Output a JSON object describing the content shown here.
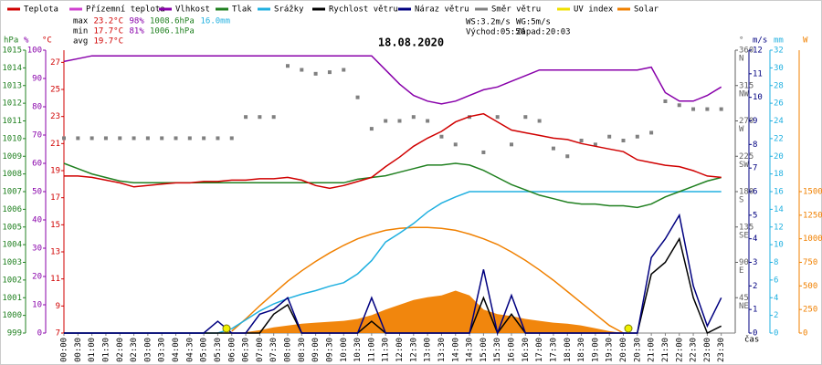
{
  "chart_data": {
    "type": "line",
    "title": "18.08.2020",
    "legend": [
      {
        "name": "Teplota",
        "color": "#d00000"
      },
      {
        "name": "Přízemní teplota",
        "color": "#d040d0"
      },
      {
        "name": "Vlhkost",
        "color": "#8800aa"
      },
      {
        "name": "Tlak",
        "color": "#208020"
      },
      {
        "name": "Srážky",
        "color": "#20b0e0"
      },
      {
        "name": "Rychlost větru",
        "color": "#000000"
      },
      {
        "name": "Náraz větru",
        "color": "#000080"
      },
      {
        "name": "Směr větru",
        "color": "#808080"
      },
      {
        "name": "UV index",
        "color": "#f0e000"
      },
      {
        "name": "Solar",
        "color": "#f08000"
      }
    ],
    "stats": [
      [
        {
          "text": "max",
          "color": "#000000"
        },
        {
          "text": "23.2°C",
          "color": "#d00000"
        },
        {
          "text": "98%",
          "color": "#8800aa"
        },
        {
          "text": "1008.6hPa",
          "color": "#208020"
        },
        {
          "text": "16.0mm",
          "color": "#20b0e0"
        }
      ],
      [
        {
          "text": "min",
          "color": "#000000"
        },
        {
          "text": "17.7°C",
          "color": "#d00000"
        },
        {
          "text": "81%",
          "color": "#8800aa"
        },
        {
          "text": "1006.1hPa",
          "color": "#208020"
        }
      ],
      [
        {
          "text": "avg",
          "color": "#000000"
        },
        {
          "text": "19.7°C",
          "color": "#d00000"
        }
      ]
    ],
    "info": [
      "WS:3.2m/s",
      "WG:5m/s",
      "Východ:05:50",
      "Západ:20:03"
    ],
    "x_label": "čas",
    "categories": [
      "00:00",
      "00:30",
      "01:00",
      "01:30",
      "02:00",
      "02:30",
      "03:00",
      "03:30",
      "04:00",
      "04:30",
      "05:00",
      "05:30",
      "06:00",
      "06:30",
      "07:00",
      "07:30",
      "08:00",
      "08:30",
      "09:00",
      "09:30",
      "10:00",
      "10:30",
      "11:00",
      "11:30",
      "12:00",
      "12:30",
      "13:00",
      "13:30",
      "14:00",
      "14:30",
      "15:00",
      "15:30",
      "16:00",
      "16:30",
      "17:00",
      "17:30",
      "18:00",
      "18:30",
      "19:00",
      "19:30",
      "20:00",
      "20:30",
      "21:00",
      "21:30",
      "22:00",
      "22:30",
      "23:00",
      "23:30"
    ],
    "axes": {
      "press": {
        "label": "hPa",
        "color": "#208020",
        "ylim": [
          999,
          1015
        ],
        "yticks": [
          999,
          1000,
          1001,
          1002,
          1003,
          1004,
          1005,
          1006,
          1007,
          1008,
          1009,
          1010,
          1011,
          1012,
          1013,
          1014,
          1015
        ]
      },
      "hum": {
        "label": "%",
        "color": "#8800aa",
        "ylim": [
          0,
          100
        ],
        "yticks": [
          0,
          10,
          20,
          30,
          40,
          50,
          60,
          70,
          80,
          90,
          100
        ]
      },
      "temp": {
        "label": "°C",
        "color": "#d00000",
        "ylim": [
          7,
          27.9
        ],
        "yticks": [
          7,
          9,
          11,
          13,
          15,
          17,
          19,
          21,
          23,
          25,
          27
        ]
      },
      "dir": {
        "label": "°",
        "color": "#606060",
        "ylim": [
          0,
          360
        ],
        "yticks": [
          {
            "value": 45,
            "label": "45",
            "sub": "NE"
          },
          {
            "value": 90,
            "label": "90",
            "sub": "E"
          },
          {
            "value": 135,
            "label": "135",
            "sub": "SE"
          },
          {
            "value": 180,
            "label": "180",
            "sub": "S"
          },
          {
            "value": 225,
            "label": "225",
            "sub": "SW"
          },
          {
            "value": 270,
            "label": "270",
            "sub": "W"
          },
          {
            "value": 315,
            "label": "315",
            "sub": "NW"
          },
          {
            "value": 360,
            "label": "360",
            "sub": "N"
          }
        ]
      },
      "ms": {
        "label": "m/s",
        "color": "#000080",
        "ylim": [
          0,
          12
        ],
        "yticks": [
          0,
          1,
          2,
          3,
          4,
          5,
          6,
          7,
          8,
          9,
          10,
          11,
          12
        ]
      },
      "mm": {
        "label": "mm",
        "color": "#20b0e0",
        "ylim": [
          0,
          32
        ],
        "yticks": [
          0,
          2,
          4,
          6,
          8,
          10,
          12,
          14,
          16,
          18,
          20,
          22,
          24,
          26,
          28,
          30,
          32
        ]
      },
      "solar": {
        "label": "W",
        "color": "#f08000",
        "ylim": [
          0,
          3000
        ],
        "yticks": [
          0,
          250,
          500,
          750,
          1000,
          1250,
          1500
        ]
      }
    },
    "series": [
      {
        "kind": "area",
        "axis": "solar",
        "color": "#f08000",
        "values": [
          0,
          0,
          0,
          0,
          0,
          0,
          0,
          0,
          0,
          0,
          0,
          0,
          0,
          10,
          30,
          60,
          80,
          100,
          110,
          120,
          130,
          150,
          190,
          250,
          300,
          350,
          380,
          400,
          450,
          400,
          250,
          200,
          180,
          150,
          130,
          110,
          100,
          80,
          50,
          20,
          0,
          0,
          0,
          0,
          0,
          0,
          0,
          0
        ]
      },
      {
        "kind": "line",
        "axis": "solar",
        "color": "#f08000",
        "values": [
          null,
          null,
          null,
          null,
          null,
          null,
          null,
          null,
          null,
          null,
          null,
          null,
          20,
          150,
          290,
          420,
          550,
          660,
          760,
          850,
          930,
          1000,
          1050,
          1090,
          1110,
          1120,
          1120,
          1110,
          1090,
          1050,
          1000,
          940,
          860,
          770,
          670,
          560,
          440,
          320,
          200,
          80,
          0,
          null,
          null,
          null,
          null,
          null,
          null,
          null
        ]
      },
      {
        "kind": "scatter",
        "axis": "dir",
        "color": "#808080",
        "values": [
          248,
          248,
          248,
          248,
          248,
          248,
          248,
          248,
          248,
          248,
          248,
          248,
          248,
          275,
          275,
          275,
          340,
          335,
          330,
          332,
          335,
          300,
          260,
          270,
          270,
          275,
          270,
          250,
          240,
          275,
          230,
          275,
          240,
          275,
          270,
          235,
          225,
          245,
          240,
          250,
          245,
          250,
          255,
          295,
          290,
          285,
          285,
          285
        ]
      },
      {
        "kind": "line",
        "axis": "mm",
        "color": "#20b0e0",
        "values": [
          0,
          0,
          0,
          0,
          0,
          0,
          0,
          0,
          0,
          0,
          0,
          0,
          0.5,
          1.5,
          2.5,
          3.3,
          3.9,
          4.4,
          4.8,
          5.3,
          5.7,
          6.7,
          8.2,
          10.3,
          11.3,
          12.4,
          13.7,
          14.7,
          15.4,
          16.0,
          16.0,
          16.0,
          16.0,
          16.0,
          16.0,
          16.0,
          16.0,
          16.0,
          16.0,
          16.0,
          16.0,
          16.0,
          16.0,
          16.0,
          16.0,
          16.0,
          16.0,
          16.0
        ]
      },
      {
        "kind": "line",
        "axis": "press",
        "color": "#208020",
        "values": [
          1008.6,
          1008.3,
          1008.0,
          1007.8,
          1007.6,
          1007.5,
          1007.5,
          1007.5,
          1007.5,
          1007.5,
          1007.5,
          1007.5,
          1007.5,
          1007.5,
          1007.5,
          1007.5,
          1007.5,
          1007.5,
          1007.5,
          1007.5,
          1007.5,
          1007.7,
          1007.8,
          1007.9,
          1008.1,
          1008.3,
          1008.5,
          1008.5,
          1008.6,
          1008.5,
          1008.2,
          1007.8,
          1007.4,
          1007.1,
          1006.8,
          1006.6,
          1006.4,
          1006.3,
          1006.3,
          1006.2,
          1006.2,
          1006.1,
          1006.3,
          1006.7,
          1007.0,
          1007.3,
          1007.6,
          1007.8
        ]
      },
      {
        "kind": "line",
        "axis": "hum",
        "color": "#8800aa",
        "values": [
          96,
          97,
          98,
          98,
          98,
          98,
          98,
          98,
          98,
          98,
          98,
          98,
          98,
          98,
          98,
          98,
          98,
          98,
          98,
          98,
          98,
          98,
          98,
          93,
          88,
          84,
          82,
          81,
          82,
          84,
          86,
          87,
          89,
          91,
          93,
          93,
          93,
          93,
          93,
          93,
          93,
          93,
          94,
          85,
          82,
          82,
          84,
          87
        ]
      },
      {
        "kind": "line",
        "axis": "temp",
        "color": "#d00000",
        "values": [
          18.6,
          18.6,
          18.5,
          18.3,
          18.1,
          17.8,
          17.9,
          18.0,
          18.1,
          18.1,
          18.2,
          18.2,
          18.3,
          18.3,
          18.4,
          18.4,
          18.5,
          18.3,
          17.9,
          17.7,
          17.9,
          18.2,
          18.5,
          19.3,
          20.0,
          20.8,
          21.4,
          21.9,
          22.6,
          23.0,
          23.2,
          22.6,
          22.0,
          21.8,
          21.6,
          21.4,
          21.3,
          21.0,
          20.8,
          20.6,
          20.4,
          19.8,
          19.6,
          19.4,
          19.3,
          19.0,
          18.6,
          18.5
        ]
      },
      {
        "kind": "line",
        "axis": "ms",
        "color": "#000000",
        "values": [
          0,
          0,
          0,
          0,
          0,
          0,
          0,
          0,
          0,
          0,
          0,
          0,
          0,
          0,
          0,
          0.8,
          1.2,
          0,
          0,
          0,
          0,
          0,
          0.5,
          0,
          0,
          0,
          0,
          0,
          0,
          0,
          1.5,
          0,
          0.8,
          0,
          0,
          0,
          0,
          0,
          0,
          0,
          0,
          0,
          2.5,
          3.0,
          4.0,
          1.5,
          0,
          0.3
        ]
      },
      {
        "kind": "line",
        "axis": "ms",
        "color": "#000080",
        "values": [
          0,
          0,
          0,
          0,
          0,
          0,
          0,
          0,
          0,
          0,
          0,
          0.5,
          0,
          0,
          0.8,
          1.0,
          1.5,
          0,
          0,
          0,
          0,
          0,
          1.5,
          0,
          0,
          0,
          0,
          0,
          0,
          0,
          2.7,
          0,
          1.6,
          0,
          0,
          0,
          0,
          0,
          0,
          0,
          0,
          0,
          3.2,
          4.0,
          5.0,
          2.0,
          0.3,
          1.5
        ]
      }
    ]
  }
}
